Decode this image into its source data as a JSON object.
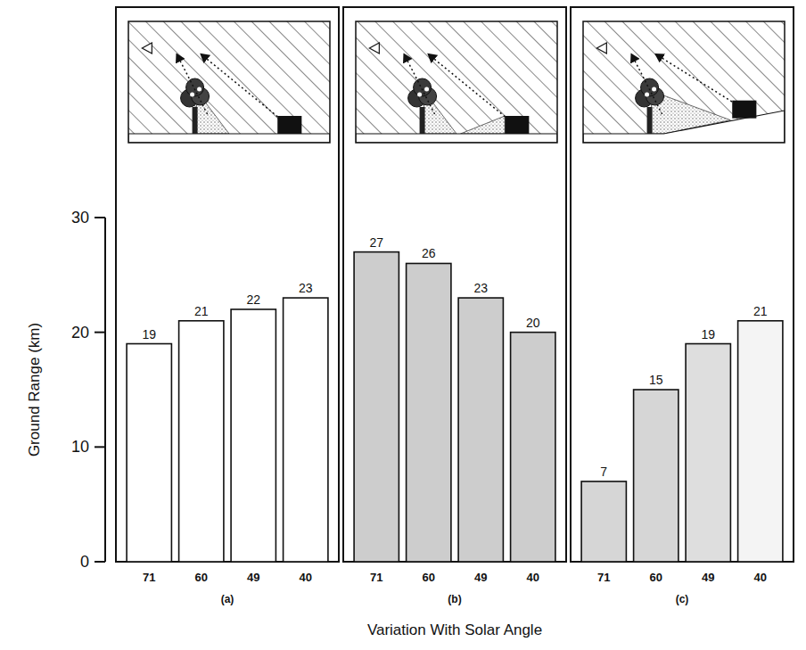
{
  "chart_data": [
    {
      "type": "bar",
      "title": "(a)",
      "ylabel": "Ground Range (km)",
      "categories": [
        "71",
        "60",
        "49",
        "40"
      ],
      "values": [
        19,
        21,
        22,
        23
      ],
      "colors": [
        "#ffffff",
        "#ffffff",
        "#ffffff",
        "#ffffff"
      ],
      "ylim": [
        0,
        30
      ],
      "yticks": [
        0,
        10,
        20,
        30
      ],
      "data_labels": true
    },
    {
      "type": "bar",
      "title": "(b)",
      "xlabel": "Variation With Solar Angle",
      "categories": [
        "71",
        "60",
        "49",
        "40"
      ],
      "values": [
        27,
        26,
        23,
        20
      ],
      "colors": [
        "#cdcdcd",
        "#cdcdcd",
        "#cdcdcd",
        "#cdcdcd"
      ],
      "ylim": [
        0,
        30
      ],
      "data_labels": true,
      "tick_labels": "x"
    },
    {
      "type": "bar",
      "title": "(c)",
      "categories": [
        "71",
        "60",
        "49",
        "40"
      ],
      "values": [
        7,
        15,
        19,
        21
      ],
      "colors": [
        "#d6d6d6",
        "#d6d6d6",
        "#dedede",
        "#f4f4f4"
      ],
      "ylim": [
        0,
        30
      ],
      "data_labels": true,
      "tick_labels": "x"
    }
  ]
}
